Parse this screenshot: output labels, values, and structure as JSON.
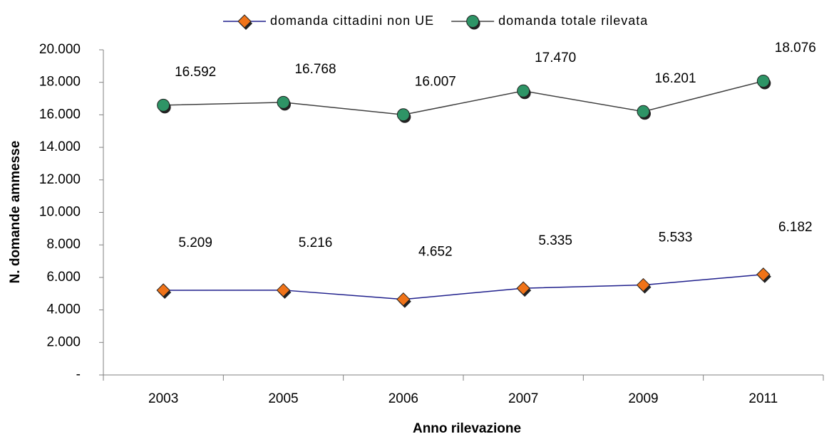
{
  "chart_data": {
    "type": "line",
    "x_label": "Anno rilevazione",
    "y_label": "N. domande ammesse",
    "categories": [
      "2003",
      "2005",
      "2006",
      "2007",
      "2009",
      "2011"
    ],
    "series": [
      {
        "name": "domanda cittadini non UE",
        "color": "#1f1f8c",
        "marker": "diamond",
        "marker_color": "#f07318",
        "values": [
          5209,
          5216,
          4652,
          5335,
          5533,
          6182
        ],
        "value_labels": [
          "5.209",
          "5.216",
          "4.652",
          "5.335",
          "5.533",
          "6.182"
        ]
      },
      {
        "name": "domanda totale rilevata",
        "color": "#404040",
        "marker": "circle",
        "marker_color": "#2e9466",
        "values": [
          16592,
          16768,
          16007,
          17470,
          16201,
          18076
        ],
        "value_labels": [
          "16.592",
          "16.768",
          "16.007",
          "17.470",
          "16.201",
          "18.076"
        ]
      }
    ],
    "ylim": [
      0,
      20000
    ],
    "yticks": [
      {
        "value": 0,
        "label": "-"
      },
      {
        "value": 2000,
        "label": "2.000"
      },
      {
        "value": 4000,
        "label": "4.000"
      },
      {
        "value": 6000,
        "label": "6.000"
      },
      {
        "value": 8000,
        "label": "8.000"
      },
      {
        "value": 10000,
        "label": "10.000"
      },
      {
        "value": 12000,
        "label": "12.000"
      },
      {
        "value": 14000,
        "label": "14.000"
      },
      {
        "value": 16000,
        "label": "16.000"
      },
      {
        "value": 18000,
        "label": "18.000"
      },
      {
        "value": 20000,
        "label": "20.000"
      }
    ],
    "grid": false,
    "legend": "top"
  }
}
